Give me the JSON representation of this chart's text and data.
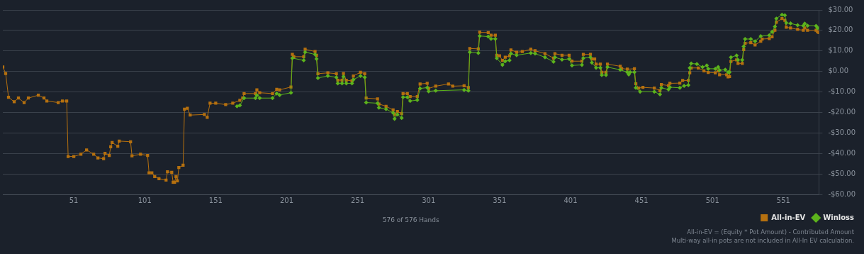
{
  "chart_data": {
    "type": "line",
    "xlabel": "576 of 576 Hands",
    "xlim": [
      1,
      576
    ],
    "xticks": [
      51,
      101,
      151,
      201,
      251,
      301,
      351,
      401,
      451,
      501,
      551
    ],
    "ylim": [
      -60,
      30
    ],
    "yticks": [
      {
        "value": -60,
        "label": "-$60.00"
      },
      {
        "value": -50,
        "label": "-$50.00"
      },
      {
        "value": -40,
        "label": "-$40.00"
      },
      {
        "value": -30,
        "label": "-$30.00"
      },
      {
        "value": -20,
        "label": "-$20.00"
      },
      {
        "value": -10,
        "label": "-$10.00"
      },
      {
        "value": 0,
        "label": "$0.00"
      },
      {
        "value": 10,
        "label": "$10.00"
      },
      {
        "value": 20,
        "label": "$20.00"
      },
      {
        "value": 30,
        "label": "$30.00"
      }
    ],
    "grid": "y",
    "legend": "bottom right",
    "line_style": "solid",
    "annotations": [
      "All-in-EV = (Equity * Pot Amount) - Contributed Amount",
      "Multi-way all-in pots are not included in All-In EV calculation."
    ],
    "series": [
      {
        "name": "Winloss",
        "color": "#5cb31c",
        "marker": "diamond",
        "x": [
          166,
          168,
          171,
          179,
          180,
          182,
          191,
          194,
          196,
          204,
          205,
          213,
          214,
          221,
          222,
          223,
          230,
          236,
          237,
          240,
          241,
          243,
          247,
          248,
          253,
          256,
          257,
          265,
          266,
          271,
          276,
          277,
          279,
          282,
          283,
          286,
          288,
          293,
          295,
          300,
          301,
          306,
          326,
          329,
          330,
          336,
          337,
          343,
          345,
          348,
          349,
          353,
          355,
          358,
          359,
          363,
          373,
          376,
          383,
          389,
          390,
          395,
          400,
          402,
          409,
          410,
          415,
          416,
          419,
          422,
          423,
          426,
          427,
          436,
          441,
          442,
          443,
          446,
          447,
          450,
          460,
          464,
          465,
          470,
          471,
          478,
          481,
          484,
          485,
          486,
          490,
          494,
          497,
          498,
          503,
          505,
          506,
          510,
          512,
          513,
          514,
          518,
          519,
          522,
          523,
          524,
          528,
          531,
          535,
          541,
          543,
          545,
          546,
          550,
          552,
          553,
          556,
          561,
          565,
          566,
          568,
          574,
          575,
          576
        ],
        "values": [
          -17,
          -16.6,
          -13,
          -13,
          -11.6,
          -13,
          -13,
          -10.8,
          -11.5,
          -10.4,
          6.5,
          5.4,
          9.4,
          8.3,
          6.1,
          -3.2,
          -2.2,
          -2.9,
          -5.8,
          -5.8,
          -2.5,
          -5.8,
          -5.8,
          -4,
          -2.2,
          -2.9,
          -15.2,
          -15.5,
          -17.7,
          -18.4,
          -20.2,
          -23.1,
          -21,
          -22.7,
          -12.6,
          -12.6,
          -14.4,
          -14,
          -8.3,
          -7.9,
          -9.7,
          -9.4,
          -9,
          -9.4,
          9.4,
          9,
          17.3,
          17,
          15.9,
          15.9,
          6.5,
          3.2,
          5,
          5.4,
          8.7,
          7.9,
          9,
          8.7,
          6.9,
          4.7,
          6.9,
          5.8,
          6.1,
          2.9,
          3.2,
          6.5,
          6.9,
          4.3,
          1.8,
          1.8,
          -1.8,
          -1.8,
          2.1,
          0.8,
          -0.4,
          -1.5,
          -0.4,
          -0.4,
          -8,
          -9.9,
          -9.9,
          -11.2,
          -8,
          -8.8,
          -7.7,
          -8,
          -7,
          -6.7,
          1.7,
          3.9,
          3.6,
          2.1,
          2.9,
          1.3,
          1.3,
          2.1,
          0.6,
          0.8,
          -0.4,
          -0.4,
          6.9,
          7.8,
          5.6,
          5.6,
          12.2,
          15.8,
          15.8,
          14.7,
          17.2,
          17.6,
          19.3,
          21.9,
          25.8,
          27.7,
          27.4,
          23.7,
          23.4,
          22.6,
          22.3,
          23.3,
          22.3,
          22.2,
          21.2,
          21.2
        ]
      },
      {
        "name": "All-in-EV",
        "color": "#b5700f",
        "marker": "square",
        "x": [
          1,
          3,
          5,
          9,
          12,
          16,
          19,
          26,
          30,
          32,
          40,
          43,
          46,
          47,
          51,
          56,
          60,
          65,
          68,
          72,
          73,
          76,
          77,
          78,
          82,
          83,
          91,
          92,
          98,
          103,
          104,
          106,
          108,
          111,
          116,
          117,
          120,
          121,
          122,
          123,
          124,
          125,
          128,
          129,
          131,
          133,
          143,
          145,
          147,
          151,
          158,
          163,
          168,
          170,
          171,
          179,
          180,
          182,
          191,
          194,
          196,
          204,
          205,
          206,
          213,
          214,
          221,
          222,
          223,
          230,
          236,
          237,
          240,
          241,
          243,
          247,
          248,
          253,
          256,
          257,
          265,
          266,
          271,
          276,
          277,
          279,
          282,
          283,
          286,
          288,
          293,
          295,
          300,
          301,
          306,
          315,
          318,
          326,
          329,
          330,
          336,
          337,
          343,
          345,
          348,
          349,
          351,
          353,
          355,
          358,
          359,
          363,
          367,
          373,
          376,
          383,
          389,
          390,
          395,
          400,
          402,
          409,
          410,
          415,
          416,
          418,
          419,
          422,
          423,
          426,
          427,
          436,
          437,
          441,
          446,
          447,
          449,
          452,
          460,
          464,
          465,
          470,
          471,
          478,
          480,
          484,
          485,
          486,
          491,
          495,
          498,
          503,
          505,
          506,
          511,
          512,
          513,
          514,
          518,
          519,
          522,
          523,
          524,
          528,
          531,
          535,
          536,
          541,
          543,
          545,
          546,
          550,
          552,
          553,
          556,
          561,
          565,
          566,
          568,
          574,
          575,
          576
        ],
        "values": [
          2.2,
          -1,
          -12.6,
          -14.8,
          -13,
          -15.2,
          -13,
          -11.6,
          -13,
          -14.4,
          -15.2,
          -14.4,
          -14.4,
          -41.5,
          -41.5,
          -40.4,
          -38.3,
          -40.4,
          -42.2,
          -42.6,
          -40,
          -41,
          -36.8,
          -34.7,
          -36.5,
          -34,
          -34.3,
          -41.2,
          -40.4,
          -41,
          -49.5,
          -49.5,
          -51.3,
          -52.3,
          -53,
          -49,
          -49.2,
          -54.1,
          -54.1,
          -51.3,
          -53.4,
          -46.9,
          -45.8,
          -18.4,
          -18,
          -21.3,
          -21,
          -22.4,
          -15.5,
          -15.5,
          -16.2,
          -15.5,
          -14.1,
          -13,
          -10.8,
          -10.8,
          -9,
          -10.4,
          -10.8,
          -8.7,
          -9,
          -7.6,
          8.3,
          7.2,
          7.2,
          10.8,
          9.7,
          7.9,
          -1.1,
          -0.7,
          -1.1,
          -4.3,
          -4.3,
          -1,
          -4.3,
          -4.6,
          -2.2,
          -0.4,
          -1.1,
          -13,
          -13.4,
          -15.9,
          -17,
          -18.8,
          -21,
          -19.5,
          -20.6,
          -10.8,
          -10.8,
          -12.3,
          -12.3,
          -6.1,
          -5.8,
          -8.3,
          -7.2,
          -6.1,
          -7.2,
          -7,
          -7.9,
          11.2,
          11,
          19.1,
          19,
          17.7,
          17.7,
          7.9,
          7.6,
          5.4,
          6.9,
          7.6,
          10.5,
          9.4,
          9.7,
          10.8,
          10.1,
          8.7,
          6.5,
          8.7,
          7.9,
          7.9,
          5,
          5,
          8.3,
          8.3,
          6.1,
          6.1,
          3.6,
          3.6,
          -0.4,
          -0.4,
          3.6,
          2.5,
          1.4,
          1.1,
          1.3,
          -6,
          -8.1,
          -7.8,
          -8.1,
          -9.4,
          -6.4,
          -6.9,
          -5.8,
          -5.7,
          -4.4,
          -4.4,
          -0.7,
          1.7,
          1.7,
          0.3,
          -0.5,
          -0.7,
          0.3,
          -1.6,
          -1.6,
          -2.7,
          -2.5,
          4.9,
          5.6,
          3.9,
          3.9,
          10.7,
          13.7,
          14,
          12.9,
          14.7,
          15.8,
          16,
          16.9,
          20.1,
          24,
          25.8,
          24.9,
          21.6,
          21.2,
          20.5,
          20.1,
          21.2,
          20.1,
          20.1,
          19.3,
          19
        ]
      }
    ]
  }
}
